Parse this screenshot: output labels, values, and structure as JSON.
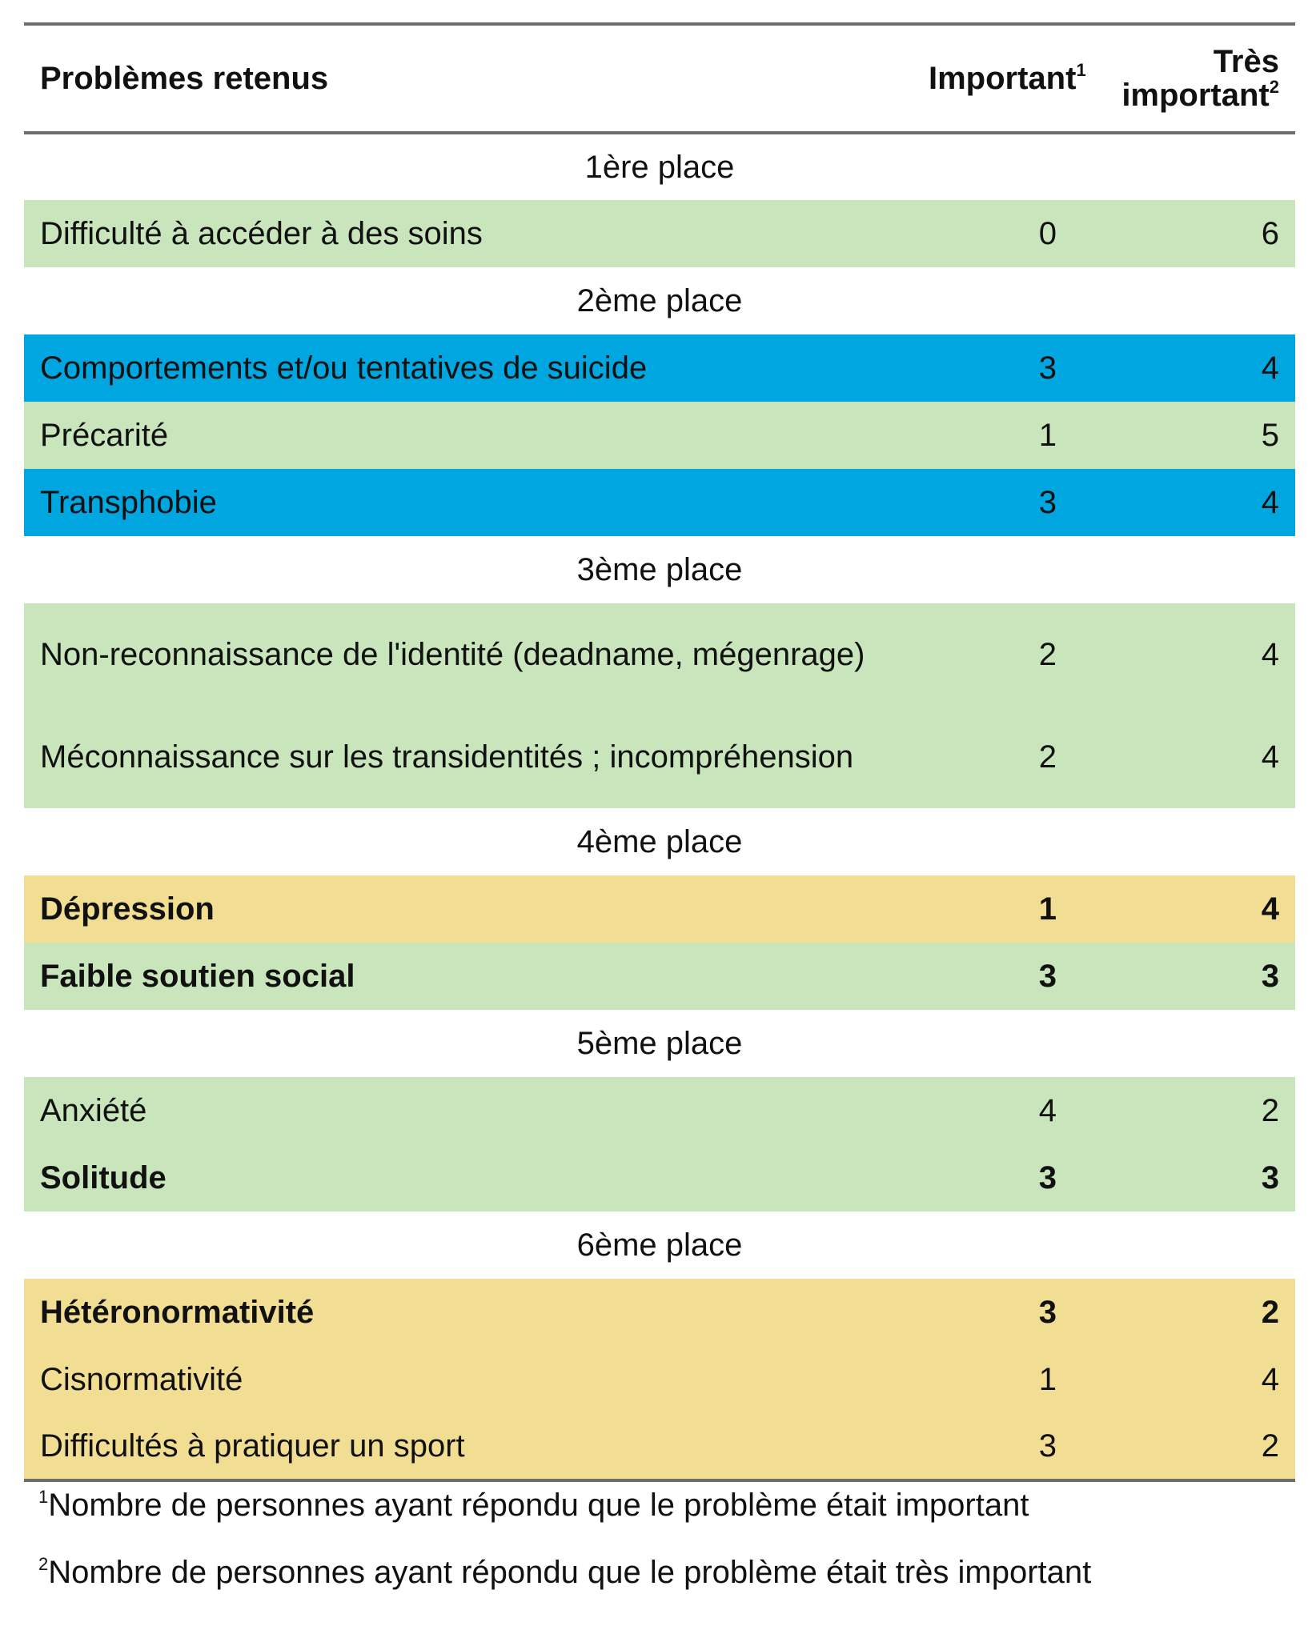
{
  "table": {
    "headers": {
      "problem": "Problèmes retenus",
      "important": "Important",
      "important_note": "1",
      "very_important_line1": "Très",
      "very_important_line2": "important",
      "very_important_note": "2"
    },
    "rows": [
      {
        "kind": "section",
        "label": "1ère place"
      },
      {
        "kind": "item",
        "problem": "Difficulté à accéder à des soins",
        "important": "0",
        "very_important": "6",
        "color": "#c9e5bb",
        "bold": false
      },
      {
        "kind": "section",
        "label": "2ème place"
      },
      {
        "kind": "item",
        "problem": "Comportements et/ou tentatives de suicide",
        "important": "3",
        "very_important": "4",
        "color": "#00a6df",
        "bold": false
      },
      {
        "kind": "item",
        "problem": "Précarité",
        "important": "1",
        "very_important": "5",
        "color": "#c9e5bb",
        "bold": false
      },
      {
        "kind": "item",
        "problem": "Transphobie",
        "important": "3",
        "very_important": "4",
        "color": "#00a6df",
        "bold": false
      },
      {
        "kind": "section",
        "label": "3ème place"
      },
      {
        "kind": "item",
        "problem": "Non-reconnaissance de l'identité (deadname, mégenrage)",
        "important": "2",
        "very_important": "4",
        "color": "#c9e5bb",
        "bold": false,
        "tall": true
      },
      {
        "kind": "item",
        "problem": "Méconnaissance sur les transidentités ; incompréhension",
        "important": "2",
        "very_important": "4",
        "color": "#c9e5bb",
        "bold": false,
        "tall": true
      },
      {
        "kind": "section",
        "label": "4ème place"
      },
      {
        "kind": "item",
        "problem": "Dépression",
        "important": "1",
        "very_important": "4",
        "color": "#f1de93",
        "bold": true
      },
      {
        "kind": "item",
        "problem": "Faible soutien social",
        "important": "3",
        "very_important": "3",
        "color": "#c9e5bb",
        "bold": true
      },
      {
        "kind": "section",
        "label": "5ème place"
      },
      {
        "kind": "item",
        "problem": "Anxiété",
        "important": "4",
        "very_important": "2",
        "color": "#c9e5bb",
        "bold": false
      },
      {
        "kind": "item",
        "problem": "Solitude",
        "important": "3",
        "very_important": "3",
        "color": "#c9e5bb",
        "bold": true
      },
      {
        "kind": "section",
        "label": "6ème place"
      },
      {
        "kind": "item",
        "problem": "Hétéronormativité",
        "important": "3",
        "very_important": "2",
        "color": "#f1de93",
        "bold": true
      },
      {
        "kind": "item",
        "problem": "Cisnormativité",
        "important": "1",
        "very_important": "4",
        "color": "#f1de93",
        "bold": false
      },
      {
        "kind": "item",
        "problem": "Difficultés à pratiquer un sport",
        "important": "3",
        "very_important": "2",
        "color": "#f1de93",
        "bold": false
      }
    ]
  },
  "footnotes": [
    {
      "mark": "1",
      "text": "Nombre de personnes ayant répondu que le problème était important"
    },
    {
      "mark": "2",
      "text": "Nombre de personnes ayant répondu que le problème était très important"
    }
  ]
}
